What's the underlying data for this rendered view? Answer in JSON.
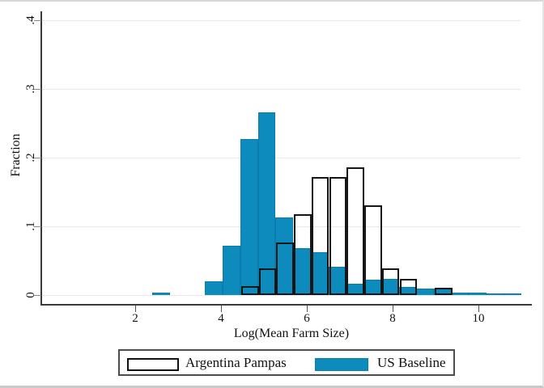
{
  "figure": {
    "ylabel": "Fraction",
    "xlabel": "Log(Mean Farm Size)",
    "colors": {
      "us_fill": "#0d8bbd",
      "us_border": "#0b7dab",
      "argentina_outline": "#161616",
      "axis": "#3a3a3a",
      "grid": "#e9e9e9",
      "legend_border": "#4d4d4d"
    }
  },
  "chart_data": {
    "type": "bar",
    "subtype": "overlaid_histogram",
    "title": "",
    "xlabel": "Log(Mean Farm Size)",
    "ylabel": "Fraction",
    "xlim": [
      0.2,
      11.1
    ],
    "ylim": [
      0,
      0.4
    ],
    "x_ticks": [
      2,
      4,
      6,
      8,
      10
    ],
    "y_ticks": [
      0,
      0.1,
      0.2,
      0.3,
      0.4
    ],
    "y_tick_labels": [
      "0",
      ".1",
      ".2",
      ".3",
      ".4"
    ],
    "grid": "horizontal",
    "legend_position": "bottom",
    "bin_width": 0.41,
    "series": [
      {
        "name": "US Baseline",
        "style": "fill",
        "color": "#0d8bbd",
        "bins": [
          {
            "x": 2.4,
            "f": 0.003
          },
          {
            "x": 3.63,
            "f": 0.02
          },
          {
            "x": 4.04,
            "f": 0.072
          },
          {
            "x": 4.45,
            "f": 0.227
          },
          {
            "x": 4.86,
            "f": 0.266
          },
          {
            "x": 5.27,
            "f": 0.113
          },
          {
            "x": 5.68,
            "f": 0.068
          },
          {
            "x": 6.09,
            "f": 0.062
          },
          {
            "x": 6.5,
            "f": 0.041
          },
          {
            "x": 6.91,
            "f": 0.016
          },
          {
            "x": 7.32,
            "f": 0.022
          },
          {
            "x": 7.73,
            "f": 0.024
          },
          {
            "x": 8.14,
            "f": 0.012
          },
          {
            "x": 8.55,
            "f": 0.009
          },
          {
            "x": 8.96,
            "f": 0.01
          },
          {
            "x": 9.37,
            "f": 0.004
          },
          {
            "x": 9.78,
            "f": 0.003
          },
          {
            "x": 10.19,
            "f": 0.002
          },
          {
            "x": 10.6,
            "f": 0.002
          }
        ]
      },
      {
        "name": "Argentina Pampas",
        "style": "outline",
        "color": "#161616",
        "bins": [
          {
            "x": 4.47,
            "f": 0.013
          },
          {
            "x": 4.88,
            "f": 0.039
          },
          {
            "x": 5.29,
            "f": 0.076
          },
          {
            "x": 5.7,
            "f": 0.118
          },
          {
            "x": 6.11,
            "f": 0.172
          },
          {
            "x": 6.52,
            "f": 0.172
          },
          {
            "x": 6.93,
            "f": 0.186
          },
          {
            "x": 7.34,
            "f": 0.131
          },
          {
            "x": 7.75,
            "f": 0.039
          },
          {
            "x": 8.16,
            "f": 0.023
          },
          {
            "x": 8.98,
            "f": 0.011
          }
        ]
      }
    ]
  },
  "legend": {
    "argentina_label": "Argentina Pampas",
    "us_label": "US Baseline"
  }
}
